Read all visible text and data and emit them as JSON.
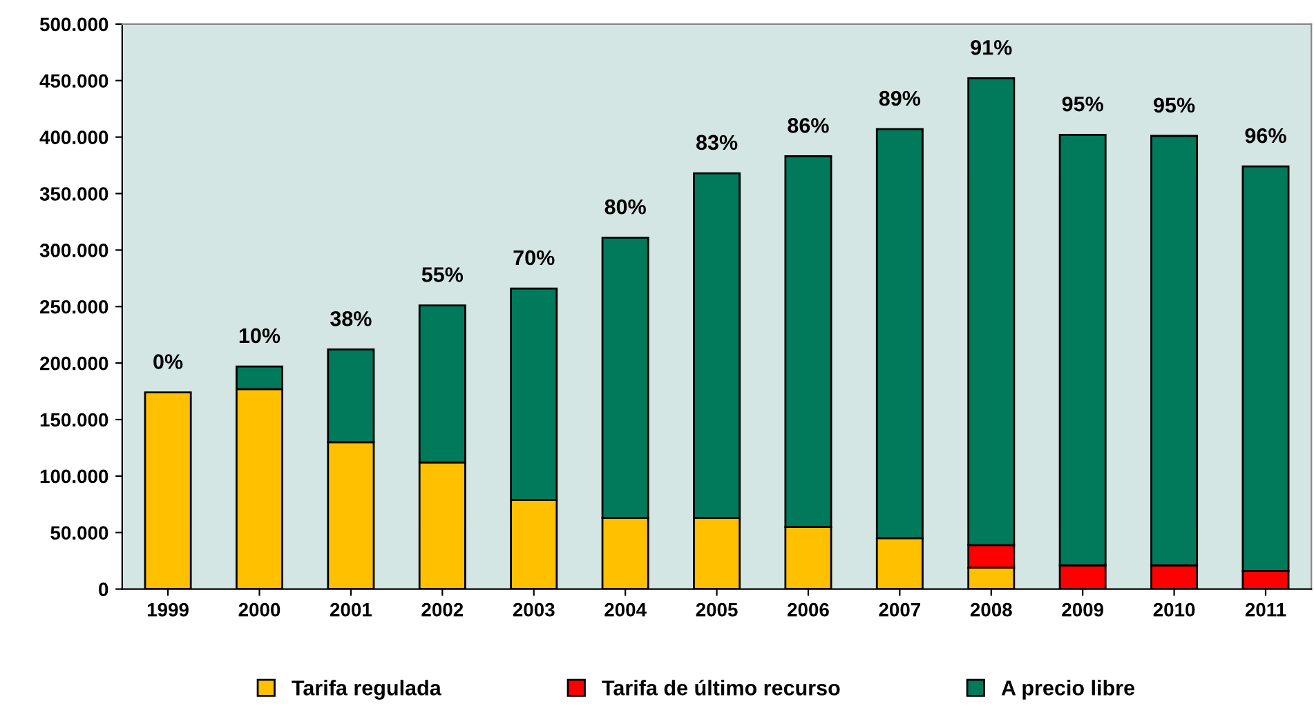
{
  "chart_data": {
    "type": "bar",
    "stacked": true,
    "categories": [
      "1999",
      "2000",
      "2001",
      "2002",
      "2003",
      "2004",
      "2005",
      "2006",
      "2007",
      "2008",
      "2009",
      "2010",
      "2011"
    ],
    "series": [
      {
        "name": "Tarifa regulada",
        "color": "#ffc000",
        "values": [
          174000,
          177000,
          130000,
          112000,
          79000,
          63000,
          63000,
          55000,
          45000,
          19000,
          null,
          null,
          null
        ]
      },
      {
        "name": "Tarifa de último recurso",
        "color": "#ff0000",
        "values": [
          null,
          null,
          null,
          null,
          null,
          null,
          null,
          null,
          null,
          20000,
          21000,
          21000,
          16000
        ]
      },
      {
        "name": "A precio libre",
        "color": "#007a5a",
        "values": [
          null,
          20000,
          82000,
          139000,
          187000,
          248000,
          305000,
          328000,
          362000,
          413000,
          381000,
          380000,
          358000
        ]
      }
    ],
    "annotations": [
      {
        "text": "0%",
        "x": "1999",
        "y": 174000
      },
      {
        "text": "10%",
        "x": "2000",
        "y": 197000
      },
      {
        "text": "38%",
        "x": "2001",
        "y": 212000
      },
      {
        "text": "55%",
        "x": "2002",
        "y": 251000
      },
      {
        "text": "70%",
        "x": "2003",
        "y": 266000
      },
      {
        "text": "80%",
        "x": "2004",
        "y": 311000
      },
      {
        "text": "83%",
        "x": "2005",
        "y": 368000
      },
      {
        "text": "86%",
        "x": "2006",
        "y": 383000
      },
      {
        "text": "89%",
        "x": "2007",
        "y": 407000
      },
      {
        "text": "91%",
        "x": "2008",
        "y": 452000
      },
      {
        "text": "95%",
        "x": "2009",
        "y": 402000
      },
      {
        "text": "95%",
        "x": "2010",
        "y": 401000
      },
      {
        "text": "96%",
        "x": "2011",
        "y": 374000
      }
    ],
    "ylim": [
      0,
      500000
    ],
    "yticks": [
      {
        "value": 0,
        "label": "0"
      },
      {
        "value": 50000,
        "label": "50.000"
      },
      {
        "value": 100000,
        "label": "100.000"
      },
      {
        "value": 150000,
        "label": "150.000"
      },
      {
        "value": 200000,
        "label": "200.000"
      },
      {
        "value": 250000,
        "label": "250.000"
      },
      {
        "value": 300000,
        "label": "300.000"
      },
      {
        "value": 350000,
        "label": "350.000"
      },
      {
        "value": 400000,
        "label": "400.000"
      },
      {
        "value": 450000,
        "label": "450.000"
      },
      {
        "value": 500000,
        "label": "500.000"
      }
    ],
    "grid": false,
    "legend": "bottom"
  }
}
